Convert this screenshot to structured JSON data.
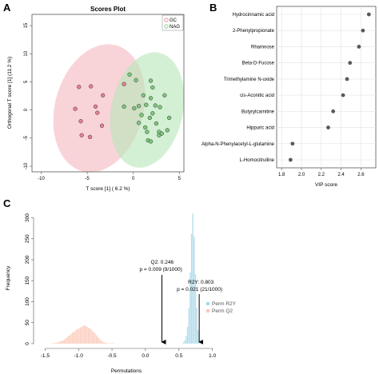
{
  "panel_labels": {
    "a": "A",
    "b": "B",
    "c": "C"
  },
  "colors": {
    "gc_fill": "#f4b8c0",
    "gc_point": "#e8808f",
    "nag_fill": "#b8e6b8",
    "nag_point": "#7cc87c",
    "vip_point": "#595959",
    "perm_r2y": "#a8d8ea",
    "perm_q2": "#f9c9b8"
  },
  "chart_data": [
    {
      "id": "scores",
      "type": "scatter",
      "title": "Scores Plot",
      "xlabel": "T score [1] ( 6.2 %)",
      "ylabel": "Orthogonal T score [1] (11.2 %)",
      "xlim": [
        -11,
        5.5
      ],
      "ylim": [
        -11,
        17
      ],
      "xticks": [
        -10,
        -5,
        0,
        5
      ],
      "yticks": [
        -10,
        -5,
        0,
        5,
        10,
        15
      ],
      "grid": false,
      "legend_position": "top-right",
      "series": [
        {
          "name": "GC",
          "color_key": "gc_point",
          "points": [
            [
              -5.9,
              4.1
            ],
            [
              -4.6,
              4.2
            ],
            [
              -3.3,
              2.6
            ],
            [
              -1.0,
              4.6
            ],
            [
              -4.1,
              0.6
            ],
            [
              -3.9,
              -0.5
            ],
            [
              -6.3,
              0.2
            ],
            [
              -5.7,
              -2.0
            ],
            [
              -3.4,
              -2.8
            ],
            [
              -5.6,
              -4.5
            ],
            [
              -4.7,
              -4.8
            ]
          ]
        },
        {
          "name": "NAG",
          "color_key": "nag_point",
          "points": [
            [
              -0.4,
              6.3
            ],
            [
              0.3,
              5.3
            ],
            [
              1.9,
              5.2
            ],
            [
              2.1,
              4.0
            ],
            [
              1.1,
              2.6
            ],
            [
              1.9,
              2.1
            ],
            [
              3.4,
              2.6
            ],
            [
              -1.0,
              0.6
            ],
            [
              0.1,
              0.3
            ],
            [
              0.6,
              0.7
            ],
            [
              1.4,
              0.9
            ],
            [
              2.4,
              0.8
            ],
            [
              2.9,
              0.5
            ],
            [
              0.9,
              -0.9
            ],
            [
              2.1,
              -0.6
            ],
            [
              1.8,
              -1.4
            ],
            [
              0.6,
              -2.3
            ],
            [
              2.5,
              -2.4
            ],
            [
              1.3,
              -3.1
            ],
            [
              1.5,
              -3.9
            ],
            [
              3.9,
              -1.4
            ],
            [
              2.8,
              -3.9
            ],
            [
              3.7,
              -3.6
            ],
            [
              1.6,
              -5.4
            ],
            [
              1.9,
              -5.6
            ],
            [
              2.8,
              -4.5
            ],
            [
              3.1,
              -4.2
            ]
          ]
        }
      ],
      "ellipses": [
        {
          "name": "GC",
          "center": [
            -3.7,
            0.3
          ],
          "rx": 4.8,
          "ry": 11.6,
          "angle": 15,
          "color_key": "gc_fill"
        },
        {
          "name": "NAG",
          "center": [
            1.5,
            0.0
          ],
          "rx": 3.9,
          "ry": 10.4,
          "angle": 12,
          "color_key": "nag_fill"
        }
      ]
    },
    {
      "id": "vip",
      "type": "scatter",
      "xlabel": "VIP score",
      "xlim": [
        1.75,
        2.75
      ],
      "xticks": [
        1.8,
        2.0,
        2.2,
        2.4,
        2.6
      ],
      "grid": true,
      "categories": [
        "Hydrocinnamic acid",
        "2-Phenylpropionate",
        "Rhamnose",
        "Beta-D-Fucose",
        "Trimethylamine N-oxide",
        "cis-Aconitic acid",
        "Butyrylcarnitine",
        "Hippuric acid",
        "Alpha-N-Phenylacetyl-L-glutamine",
        "L-Homocitrulline"
      ],
      "values": [
        2.68,
        2.62,
        2.58,
        2.49,
        2.46,
        2.42,
        2.32,
        2.27,
        1.91,
        1.89
      ]
    },
    {
      "id": "permutation",
      "type": "bar",
      "xlabel": "Permutations",
      "ylabel": "Frequency",
      "xlim": [
        -1.6,
        1.1
      ],
      "ylim": [
        0,
        320
      ],
      "xticks": [
        -1.5,
        -1.0,
        -0.5,
        0.0,
        0.5,
        1.0
      ],
      "yticks": [
        0,
        50,
        100,
        150,
        200,
        250,
        300
      ],
      "legend_position": "right",
      "bin_width": 0.02,
      "series": [
        {
          "name": "Perm R2Y",
          "color_key": "perm_r2y",
          "bin_start": 0.56,
          "counts": [
            3,
            8,
            18,
            40,
            85,
            170,
            262,
            310,
            255,
            165,
            85,
            32,
            10
          ]
        },
        {
          "name": "Perm Q2",
          "color_key": "perm_q2",
          "bin_start": -1.4,
          "counts": [
            1,
            1,
            2,
            2,
            3,
            4,
            5,
            6,
            8,
            10,
            12,
            15,
            18,
            20,
            23,
            26,
            28,
            30,
            33,
            35,
            36,
            38,
            40,
            42,
            44,
            42,
            40,
            38,
            36,
            34,
            30,
            27,
            24,
            20,
            16,
            12,
            9,
            6,
            4,
            3,
            2,
            1,
            1,
            1,
            1,
            1,
            1
          ]
        }
      ],
      "annotations": [
        {
          "line1": "Q2: 0.246",
          "line2": "p = 0.009 (9/1000)",
          "x": 0.246
        },
        {
          "line1": "R2Y: 0.803",
          "line2": "p = 0.021 (21/1000)",
          "x": 0.803
        }
      ]
    }
  ]
}
